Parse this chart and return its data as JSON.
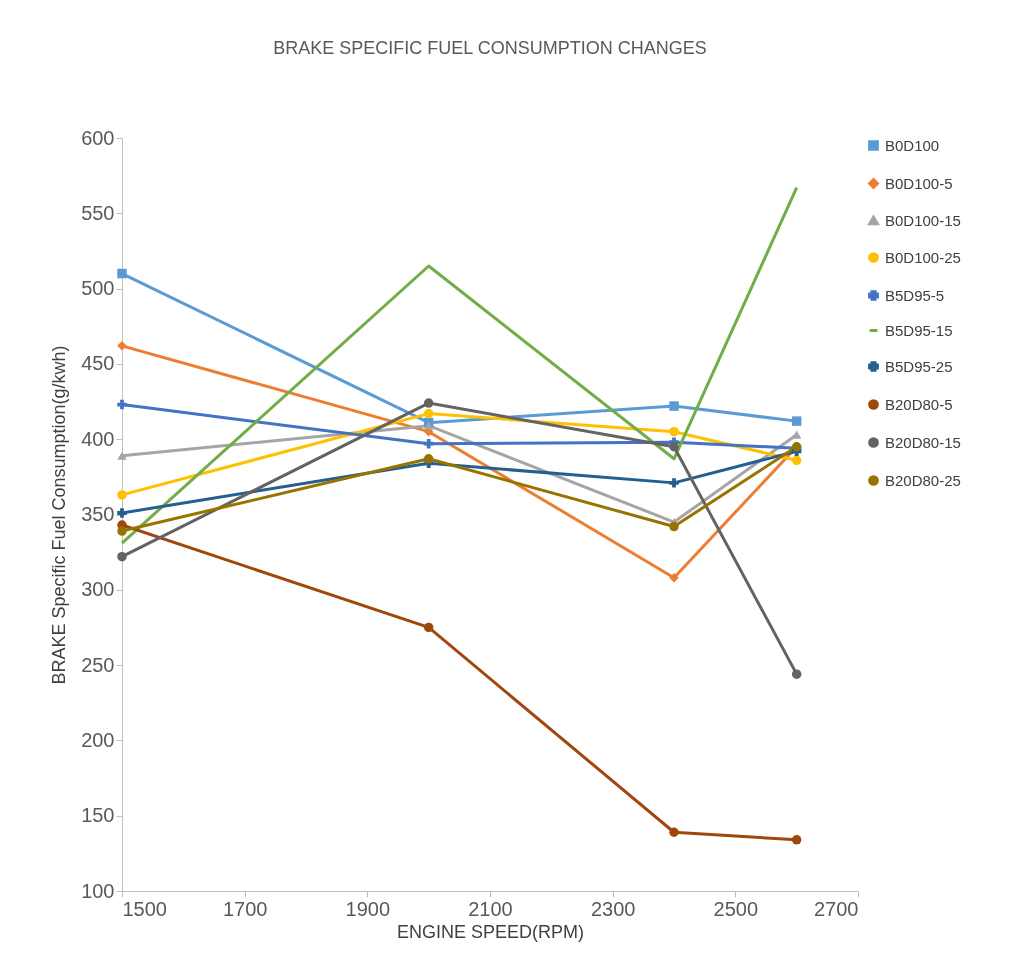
{
  "chart_data": {
    "type": "line",
    "title": "BRAKE  SPECIFIC FUEL  CONSUMPTION  CHANGES",
    "xlabel": "ENGINE SPEED(RPM)",
    "ylabel": "BRAKE  Specific Fuel Consumption(g/kwh)",
    "x": [
      1500,
      2000,
      2400,
      2600
    ],
    "xlim": [
      1500,
      2700
    ],
    "xticks": [
      1500,
      1700,
      1900,
      2100,
      2300,
      2500,
      2700
    ],
    "ylim": [
      100,
      600
    ],
    "yticks": [
      100,
      150,
      200,
      250,
      300,
      350,
      400,
      450,
      500,
      550,
      600
    ],
    "grid": false,
    "legend": "right",
    "series": [
      {
        "name": "B0D100",
        "color": "#5b9bd5",
        "marker": "square",
        "values": [
          510,
          411,
          422,
          412
        ]
      },
      {
        "name": "B0D100-5",
        "color": "#ed7d31",
        "marker": "diamond",
        "values": [
          462,
          405,
          308,
          395
        ]
      },
      {
        "name": "B0D100-15",
        "color": "#a5a5a5",
        "marker": "triangle",
        "values": [
          389,
          409,
          345,
          403
        ]
      },
      {
        "name": "B0D100-25",
        "color": "#ffc000",
        "marker": "circle",
        "values": [
          363,
          417,
          405,
          386
        ]
      },
      {
        "name": "B5D95-5",
        "color": "#4472c4",
        "marker": "cross",
        "values": [
          423,
          397,
          398,
          394
        ]
      },
      {
        "name": "B5D95-15",
        "color": "#70ad47",
        "marker": "none",
        "values": [
          331,
          515,
          387,
          567
        ]
      },
      {
        "name": "B5D95-25",
        "color": "#255e91",
        "marker": "cross",
        "values": [
          351,
          384,
          371,
          392
        ]
      },
      {
        "name": "B20D80-5",
        "color": "#9e480e",
        "marker": "circle",
        "values": [
          343,
          275,
          139,
          134
        ]
      },
      {
        "name": "B20D80-15",
        "color": "#636363",
        "marker": "circle",
        "values": [
          322,
          424,
          395,
          244
        ]
      },
      {
        "name": "B20D80-25",
        "color": "#997300",
        "marker": "circle",
        "values": [
          339,
          387,
          342,
          395
        ]
      }
    ]
  }
}
